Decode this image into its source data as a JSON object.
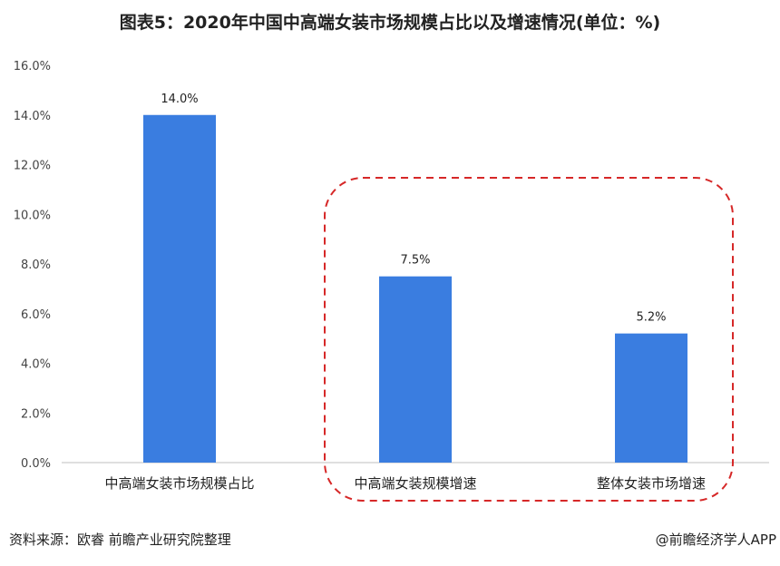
{
  "header": {
    "title": "图表5：2020年中国中高端女装市场规模占比以及增速情况(单位：%)"
  },
  "chart_data": {
    "type": "bar",
    "categories": [
      "中高端女装市场规模占比",
      "中高端女装规模增速",
      "整体女装市场增速"
    ],
    "values": [
      14.0,
      7.5,
      5.2
    ],
    "data_labels": [
      "14.0%",
      "7.5%",
      "5.2%"
    ],
    "y_ticks": [
      "0.0%",
      "2.0%",
      "4.0%",
      "6.0%",
      "8.0%",
      "10.0%",
      "12.0%",
      "14.0%",
      "16.0%"
    ],
    "ylim": [
      0,
      16
    ],
    "title": "",
    "xlabel": "",
    "ylabel": "",
    "grid": false,
    "bar_color": "#3a7de0",
    "highlight": {
      "categories": [
        "中高端女装规模增速",
        "整体女装市场增速"
      ],
      "style": "dashed-rounded-box",
      "color": "#d62828"
    }
  },
  "footer": {
    "source": "资料来源：欧睿 前瞻产业研究院整理",
    "brand": "@前瞻经济学人APP"
  }
}
